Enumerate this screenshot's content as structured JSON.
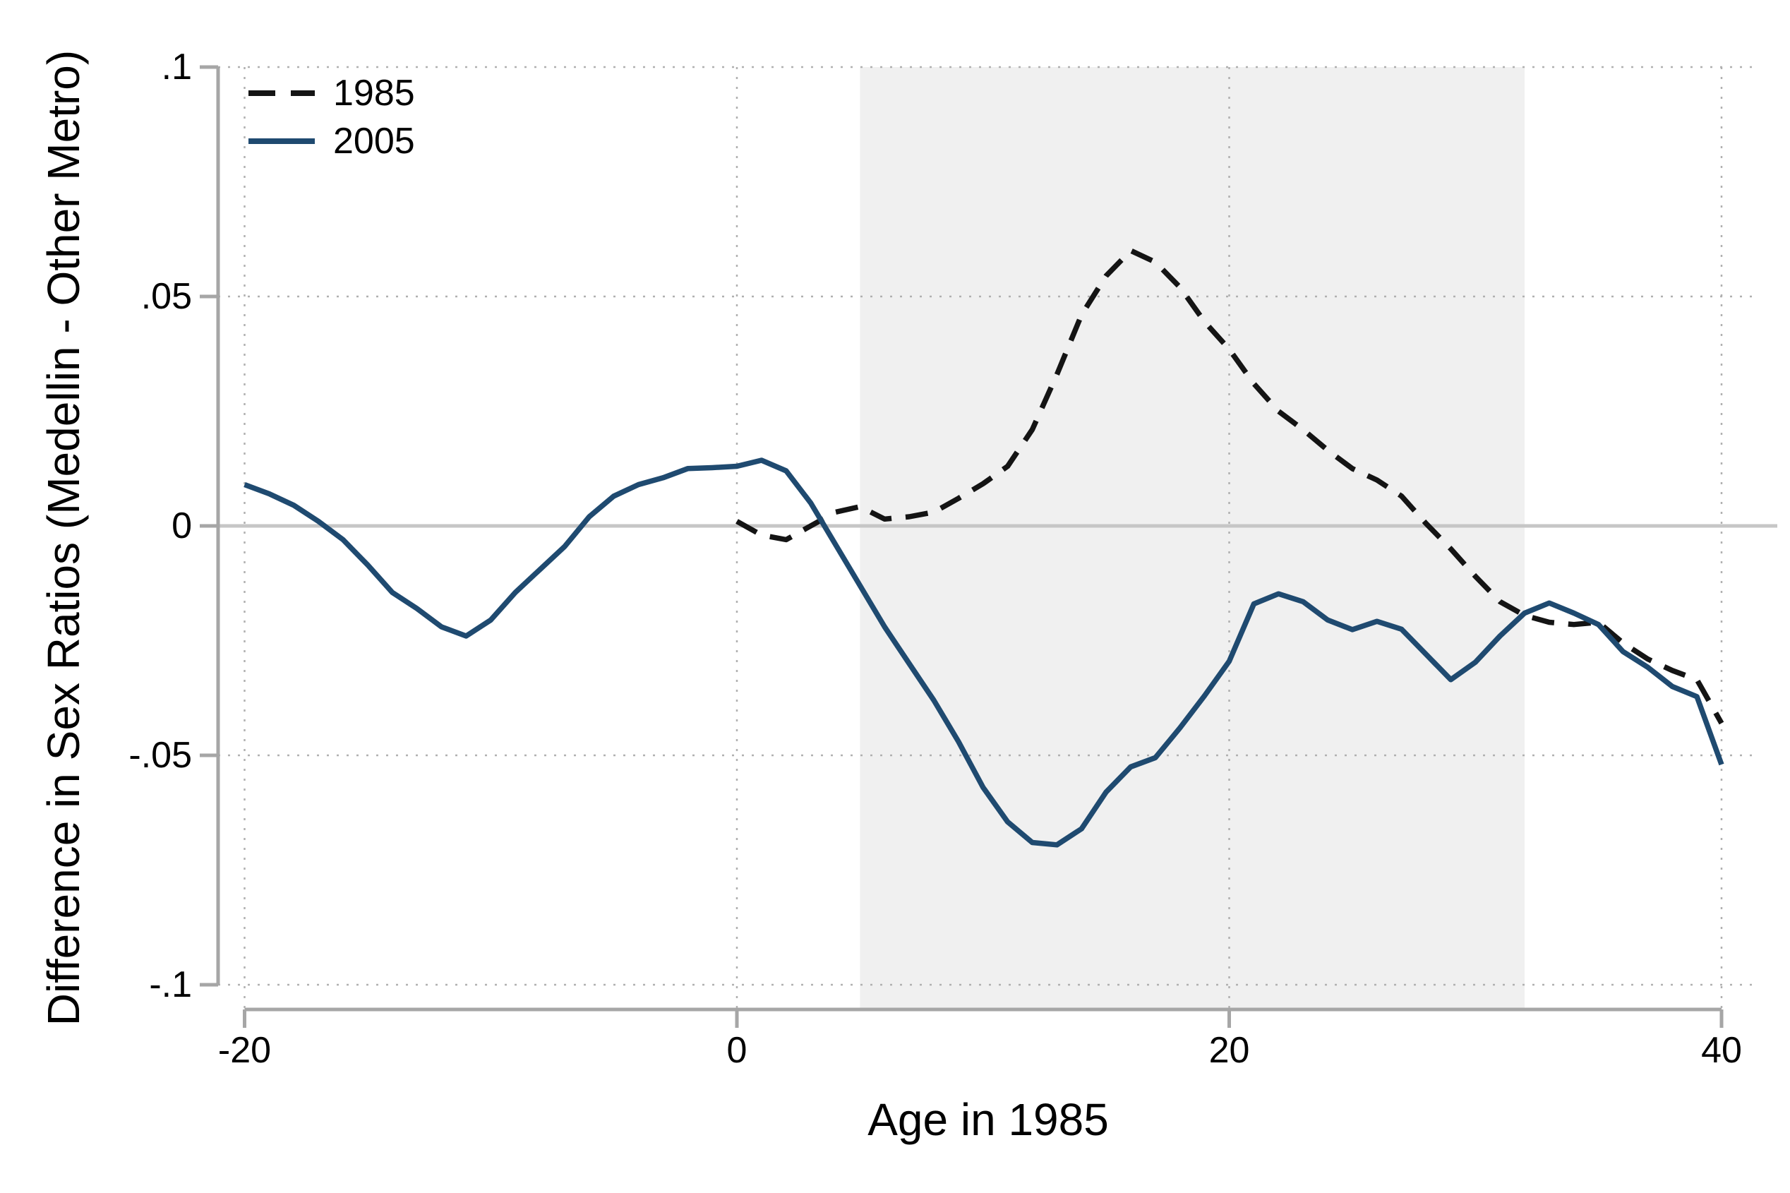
{
  "chart_data": {
    "type": "line",
    "title": "",
    "xlabel": "Age in 1985",
    "ylabel": "Difference in Sex Ratios (Medellin - Other Metro)",
    "xlim": [
      -20,
      40
    ],
    "ylim": [
      -0.1,
      0.1
    ],
    "grid": "dotted",
    "legend_position": "top-left",
    "x_ticks": [
      {
        "v": -20,
        "label": "-20"
      },
      {
        "v": 0,
        "label": "0"
      },
      {
        "v": 20,
        "label": "20"
      },
      {
        "v": 40,
        "label": "40"
      }
    ],
    "y_ticks": [
      {
        "v": 0.1,
        "label": ".1"
      },
      {
        "v": 0.05,
        "label": ".05"
      },
      {
        "v": 0,
        "label": "0"
      },
      {
        "v": -0.05,
        "label": "-.05"
      },
      {
        "v": -0.1,
        "label": "-.1"
      }
    ],
    "zero_line": 0,
    "shaded_region": {
      "x0": 5,
      "x1": 32,
      "color": "#f0f0f0"
    },
    "colors": {
      "series_1985": "#141414",
      "series_2005": "#1f4a70",
      "gridline": "#b0b0b0",
      "zero_line": "#c6c6c6",
      "axis_line": "#a6a6a6",
      "text": "#000000",
      "background": "#ffffff"
    },
    "series": [
      {
        "name": "1985",
        "style": "dashed",
        "points": [
          [
            0,
            0.001
          ],
          [
            1,
            -0.002
          ],
          [
            2,
            -0.003
          ],
          [
            3,
            0.0
          ],
          [
            4,
            0.003
          ],
          [
            5,
            0.0042
          ],
          [
            6,
            0.0015
          ],
          [
            7,
            0.002
          ],
          [
            8,
            0.003
          ],
          [
            9,
            0.006
          ],
          [
            10,
            0.0092
          ],
          [
            11,
            0.013
          ],
          [
            12,
            0.021
          ],
          [
            13,
            0.033
          ],
          [
            14,
            0.046
          ],
          [
            15,
            0.0545
          ],
          [
            16,
            0.06
          ],
          [
            17,
            0.0575
          ],
          [
            18,
            0.052
          ],
          [
            19,
            0.0445
          ],
          [
            20,
            0.0385
          ],
          [
            21,
            0.031
          ],
          [
            22,
            0.025
          ],
          [
            23,
            0.021
          ],
          [
            24,
            0.0165
          ],
          [
            25,
            0.0125
          ],
          [
            26,
            0.01
          ],
          [
            27,
            0.0065
          ],
          [
            28,
            0.0005
          ],
          [
            29,
            -0.005
          ],
          [
            30,
            -0.011
          ],
          [
            31,
            -0.0165
          ],
          [
            32,
            -0.0195
          ],
          [
            33,
            -0.021
          ],
          [
            34,
            -0.0215
          ],
          [
            35,
            -0.021
          ],
          [
            36,
            -0.0255
          ],
          [
            37,
            -0.029
          ],
          [
            38,
            -0.0315
          ],
          [
            39,
            -0.0335
          ],
          [
            40,
            -0.043
          ]
        ]
      },
      {
        "name": "2005",
        "style": "solid",
        "points": [
          [
            -20,
            0.009
          ],
          [
            -19,
            0.007
          ],
          [
            -18,
            0.0045
          ],
          [
            -17,
            0.001
          ],
          [
            -16,
            -0.003
          ],
          [
            -15,
            -0.0085
          ],
          [
            -14,
            -0.0145
          ],
          [
            -13,
            -0.018
          ],
          [
            -12,
            -0.022
          ],
          [
            -11,
            -0.024
          ],
          [
            -10,
            -0.0205
          ],
          [
            -9,
            -0.0145
          ],
          [
            -8,
            -0.0095
          ],
          [
            -7,
            -0.0045
          ],
          [
            -6,
            0.002
          ],
          [
            -5,
            0.0065
          ],
          [
            -4,
            0.009
          ],
          [
            -3,
            0.0105
          ],
          [
            -2,
            0.0125
          ],
          [
            -1,
            0.0127
          ],
          [
            0,
            0.013
          ],
          [
            1,
            0.0143
          ],
          [
            2,
            0.012
          ],
          [
            3,
            0.005
          ],
          [
            4,
            -0.004
          ],
          [
            5,
            -0.013
          ],
          [
            6,
            -0.022
          ],
          [
            7,
            -0.03
          ],
          [
            8,
            -0.038
          ],
          [
            9,
            -0.047
          ],
          [
            10,
            -0.057
          ],
          [
            11,
            -0.0645
          ],
          [
            12,
            -0.069
          ],
          [
            13,
            -0.0695
          ],
          [
            14,
            -0.066
          ],
          [
            15,
            -0.058
          ],
          [
            16,
            -0.0525
          ],
          [
            17,
            -0.0505
          ],
          [
            18,
            -0.044
          ],
          [
            19,
            -0.037
          ],
          [
            20,
            -0.0295
          ],
          [
            21,
            -0.017
          ],
          [
            22,
            -0.0148
          ],
          [
            23,
            -0.0165
          ],
          [
            24,
            -0.0205
          ],
          [
            25,
            -0.0226
          ],
          [
            26,
            -0.0208
          ],
          [
            27,
            -0.0225
          ],
          [
            28,
            -0.028
          ],
          [
            29,
            -0.0335
          ],
          [
            30,
            -0.0297
          ],
          [
            31,
            -0.024
          ],
          [
            32,
            -0.019
          ],
          [
            33,
            -0.0168
          ],
          [
            34,
            -0.019
          ],
          [
            35,
            -0.0215
          ],
          [
            36,
            -0.0274
          ],
          [
            37,
            -0.0308
          ],
          [
            38,
            -0.035
          ],
          [
            39,
            -0.0372
          ],
          [
            40,
            -0.052
          ]
        ]
      }
    ],
    "legend": [
      {
        "label": "1985",
        "style": "dashed"
      },
      {
        "label": "2005",
        "style": "solid"
      }
    ]
  }
}
